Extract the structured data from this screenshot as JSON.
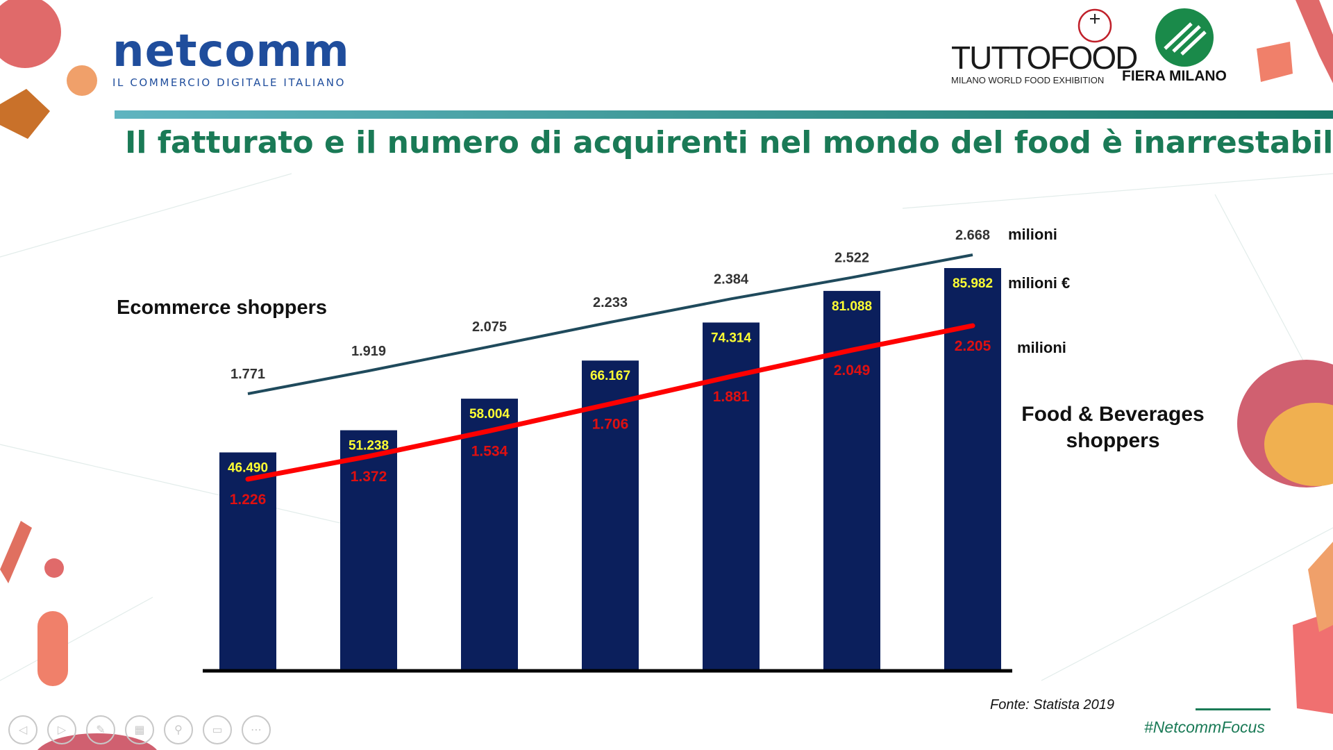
{
  "header": {
    "netcomm_logo_text": "netcomm",
    "netcomm_tagline": "IL COMMERCIO DIGITALE ITALIANO",
    "tuttofood_logo_text": "TUTTOFOOD",
    "tuttofood_subtitle": "MILANO WORLD FOOD EXHIBITION",
    "fiera_logo_text": "FIERA MILANO"
  },
  "slide": {
    "title": "Il fatturato e il numero di acquirenti nel mondo del food è inarrestabile"
  },
  "labels": {
    "ecommerce_shoppers": "Ecommerce shoppers",
    "food_shoppers_line1": "Food & Beverages",
    "food_shoppers_line2": "shoppers",
    "unit_ecom": "milioni",
    "unit_revenue": "milioni €",
    "unit_food": "milioni"
  },
  "footer": {
    "source": "Fonte: Statista 2019",
    "hashtag": "#NetcommFocus"
  },
  "colors": {
    "bar": "#0b1f5c",
    "bar_label": "#ffff33",
    "ecom_line": "#1f4a5c",
    "food_line": "#ff0000",
    "food_label": "#e01010",
    "ecom_label": "#333333",
    "title": "#1a7a56"
  },
  "chart_data": {
    "type": "bar",
    "categories": [
      "",
      "",
      "",
      "",
      "",
      "",
      ""
    ],
    "series": [
      {
        "name": "",
        "kind": "bar",
        "values": [
          46.49,
          51.238,
          58.004,
          66.167,
          74.314,
          81.088,
          85.982
        ],
        "labels": [
          "46.490",
          "51.238",
          "58.004",
          "66.167",
          "74.314",
          "81.088",
          "85.982"
        ]
      },
      {
        "name": "Ecommerce shoppers",
        "kind": "line",
        "values": [
          1.771,
          1.919,
          2.075,
          2.233,
          2.384,
          2.522,
          2.668
        ],
        "labels": [
          "1.771",
          "1.919",
          "2.075",
          "2.233",
          "2.384",
          "2.522",
          "2.668"
        ]
      },
      {
        "name": "Food & Beverages shoppers",
        "kind": "line",
        "values": [
          1.226,
          1.372,
          1.534,
          1.706,
          1.881,
          2.049,
          2.205
        ],
        "labels": [
          "1.226",
          "1.372",
          "1.534",
          "1.706",
          "1.881",
          "2.049",
          "2.205"
        ]
      }
    ],
    "grid": false,
    "axes_visible": false
  }
}
